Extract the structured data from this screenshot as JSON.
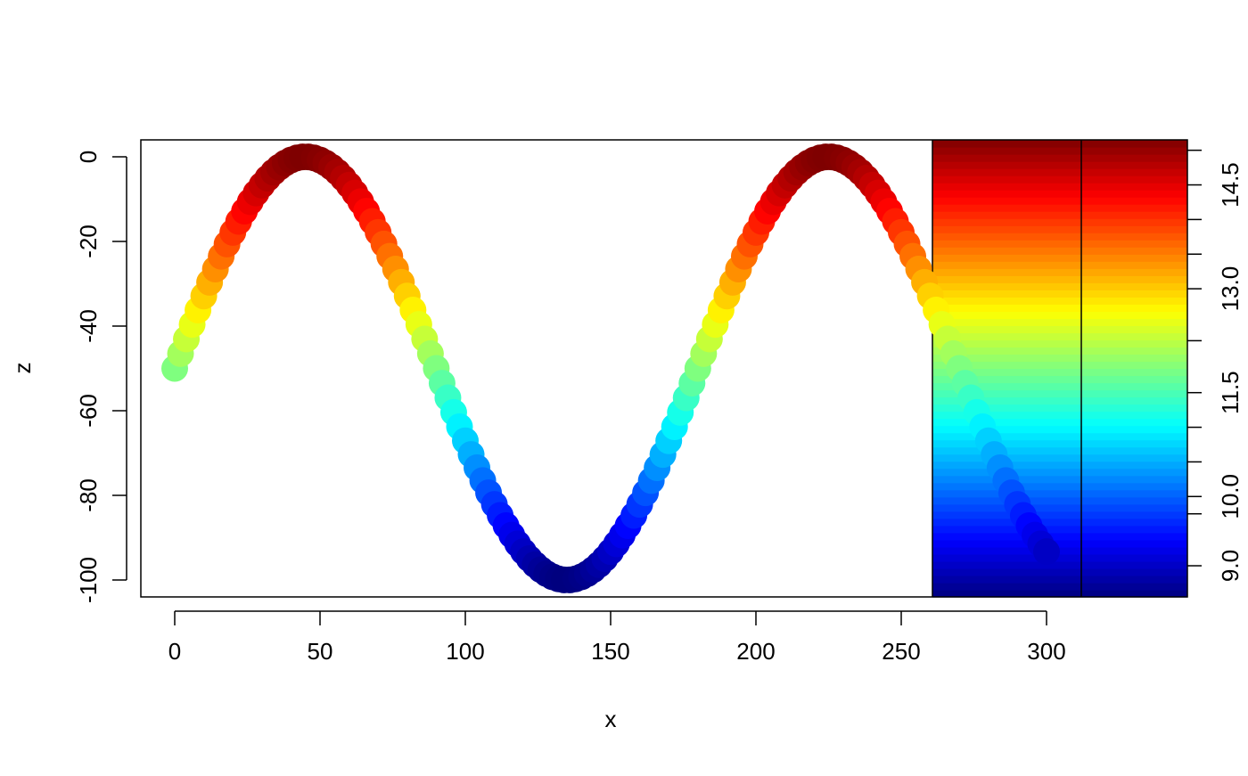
{
  "chart_data": {
    "type": "scatter",
    "title": "",
    "xlabel": "x",
    "ylabel": "z",
    "xlim": [
      -12,
      348
    ],
    "ylim": [
      -104,
      4
    ],
    "xticks": [
      0,
      50,
      100,
      150,
      200,
      250,
      300
    ],
    "yticks": [
      0,
      -20,
      -40,
      -60,
      -80,
      -100
    ],
    "series": [
      {
        "x_start": 0,
        "x_end": 300,
        "x_step": 2,
        "formula": "z = 50*sin(2*pi*x/180) - 50",
        "color_by": "z"
      }
    ],
    "colorbar": {
      "ticks": [
        9.0,
        9.75,
        10.0,
        10.5,
        11.0,
        11.5,
        12.25,
        13.0,
        13.5,
        14.0,
        14.5,
        15.0
      ],
      "labels": [
        "9.0",
        "10.0",
        "11.5",
        "13.0",
        "14.5"
      ],
      "label_values": [
        9.0,
        10.0,
        11.5,
        13.0,
        14.5
      ],
      "range": [
        8.55,
        15.15
      ],
      "palette": "jet",
      "colors": [
        "#00007F",
        "#0000FF",
        "#007FFF",
        "#00FFFF",
        "#7FFF7F",
        "#FFFF00",
        "#FF7F00",
        "#FF0000",
        "#7F0000"
      ]
    }
  }
}
